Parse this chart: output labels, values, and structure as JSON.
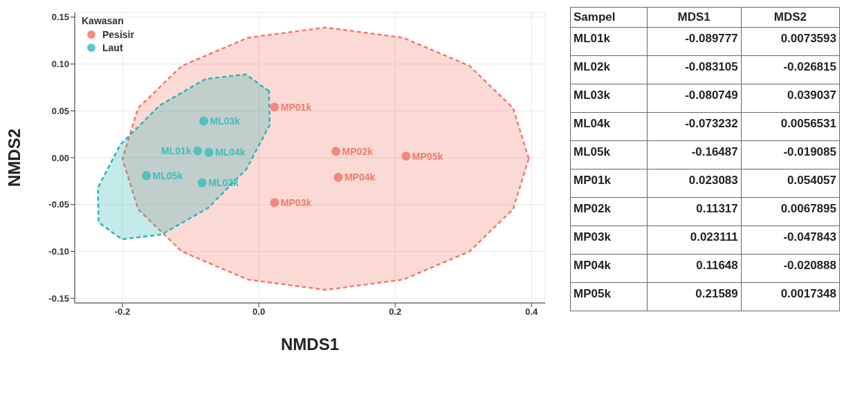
{
  "chart_data": [
    {
      "type": "scatter",
      "xlabel": "NMDS1",
      "ylabel": "NMDS2",
      "legend_title": "Kawasan",
      "legend": "top left",
      "grid": true,
      "marker": "circle",
      "xlim": [
        -0.27,
        0.42
      ],
      "xticks": [
        -0.2,
        {
          "value": 0,
          "label": "0.0"
        },
        0.2,
        0.4
      ],
      "ylim": [
        -0.155,
        0.155
      ],
      "yticks": [
        -0.15,
        {
          "value": -0.1,
          "label": "-0.10"
        },
        -0.05,
        {
          "value": 0,
          "label": "0.00"
        },
        0.05,
        {
          "value": 0.1,
          "label": "0.10"
        },
        0.15
      ],
      "series": [
        {
          "type": "area",
          "marker": "none",
          "line_style": "dashed",
          "color": "#f07a6c",
          "x": [
            0.396,
            0.373,
            0.309,
            0.212,
            0.098,
            -0.016,
            -0.113,
            -0.177,
            -0.2,
            -0.177,
            -0.113,
            -0.016,
            0.098,
            0.212,
            0.309,
            0.373,
            0.396
          ],
          "values": [
            -0.001,
            0.053,
            0.098,
            0.128,
            0.139,
            0.128,
            0.098,
            0.053,
            -0.001,
            -0.055,
            -0.1,
            -0.13,
            -0.141,
            -0.13,
            -0.1,
            -0.055,
            -0.001
          ]
        },
        {
          "type": "area",
          "marker": "none",
          "line_style": "dashed",
          "color": "#2bb5b5",
          "x": [
            0.015,
            -0.019,
            -0.078,
            -0.145,
            -0.203,
            -0.236,
            -0.235,
            -0.201,
            -0.143,
            -0.075,
            -0.018,
            0.016,
            0.015
          ],
          "values": [
            0.071,
            0.089,
            0.084,
            0.056,
            0.014,
            -0.032,
            -0.069,
            -0.087,
            -0.082,
            -0.054,
            -0.012,
            0.035,
            0.071
          ]
        },
        {
          "name": "Pesisir",
          "color": "#f07a6c",
          "x": [
            0.023083,
            0.11317,
            0.023111,
            0.11648,
            0.21589
          ],
          "values": [
            0.054057,
            0.0067895,
            -0.047843,
            -0.020888,
            0.0017348
          ]
        },
        {
          "name": "Laut",
          "color": "#3fbcbc",
          "x": [
            -0.089777,
            -0.083105,
            -0.080749,
            -0.073232,
            -0.16487
          ],
          "values": [
            0.0073593,
            -0.026815,
            0.039037,
            0.0056531,
            -0.019085
          ]
        }
      ],
      "annotations": [
        {
          "text": "MP01k",
          "x": 0.023083,
          "y": 0.054057
        },
        {
          "text": "MP02k",
          "x": 0.11317,
          "y": 0.0067895
        },
        {
          "text": "MP03k",
          "x": 0.023111,
          "y": -0.047843
        },
        {
          "text": "MP04k",
          "x": 0.11648,
          "y": -0.020888
        },
        {
          "text": "MP05k",
          "x": 0.21589,
          "y": 0.0017348
        },
        {
          "text": "ML01k",
          "x": -0.089777,
          "y": 0.0073593
        },
        {
          "text": "ML02k",
          "x": -0.083105,
          "y": -0.026815
        },
        {
          "text": "ML03k",
          "x": -0.080749,
          "y": 0.039037
        },
        {
          "text": "ML04k",
          "x": -0.073232,
          "y": 0.0056531
        },
        {
          "text": "ML05k",
          "x": -0.16487,
          "y": -0.019085
        }
      ]
    },
    {
      "type": "heatmap",
      "ylabel": "Sampel",
      "categories": [
        "MDS1",
        "MDS2"
      ],
      "y_categories": [
        "ML01k",
        "ML02k",
        "ML03k",
        "ML04k",
        "ML05k",
        "MP01k",
        "MP02k",
        "MP03k",
        "MP04k",
        "MP05k"
      ],
      "cells": [
        [
          -0.089777,
          0.0073593
        ],
        [
          -0.083105,
          -0.026815
        ],
        [
          -0.080749,
          0.039037
        ],
        [
          -0.073232,
          0.0056531
        ],
        [
          -0.16487,
          -0.019085
        ],
        [
          0.023083,
          0.054057
        ],
        [
          0.11317,
          0.0067895
        ],
        [
          0.023111,
          -0.047843
        ],
        [
          0.11648,
          -0.020888
        ],
        [
          0.21589,
          0.0017348
        ]
      ],
      "cell_labels": [
        [
          "-0.089777",
          "0.0073593"
        ],
        [
          "-0.083105",
          "-0.026815"
        ],
        [
          "-0.080749",
          "0.039037"
        ],
        [
          "-0.073232",
          "0.0056531"
        ],
        [
          "-0.16487",
          "-0.019085"
        ],
        [
          "0.023083",
          "0.054057"
        ],
        [
          "0.11317",
          "0.0067895"
        ],
        [
          "0.023111",
          "-0.047843"
        ],
        [
          "0.11648",
          "-0.020888"
        ],
        [
          "0.21589",
          "0.0017348"
        ]
      ]
    }
  ]
}
